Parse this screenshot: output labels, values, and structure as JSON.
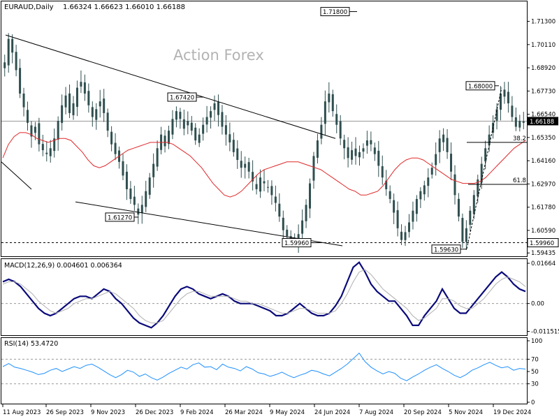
{
  "header": {
    "symbol": "EURAUD,Daily",
    "ohlc": "1.66324 1.66623 1.66010 1.66188"
  },
  "watermark": "Action Forex",
  "colors": {
    "candles": "#2f4f4f",
    "moving_average": "#e0282a",
    "macd_main": "#0a0a7a",
    "macd_signal": "#b0b0b0",
    "rsi_line": "#1e90ff",
    "trendlines": "#000000",
    "grid_dashed": "#999999"
  },
  "chart_data": [
    {
      "type": "candlestick",
      "panel": "price",
      "yticks": [
        "1.71300",
        "1.70110",
        "1.68920",
        "1.67730",
        "1.66540",
        "1.65350",
        "1.64160",
        "1.62970",
        "1.61780",
        "1.60590",
        "1.59435"
      ],
      "ylim": [
        1.593,
        1.7225
      ],
      "xticks": [
        "11 Aug 2023",
        "26 Sep 2023",
        "9 Nov 2023",
        "26 Dec 2023",
        "9 Feb 2024",
        "26 Mar 2024",
        "9 May 2024",
        "24 Jun 2024",
        "7 Aug 2024",
        "20 Sep 2024",
        "5 Nov 2024",
        "19 Dec 2024"
      ],
      "current_price": "1.66188",
      "support_level": "1.59960",
      "close_series": [
        1.692,
        1.704,
        1.697,
        1.688,
        1.676,
        1.669,
        1.661,
        1.654,
        1.659,
        1.65,
        1.647,
        1.645,
        1.648,
        1.653,
        1.662,
        1.67,
        1.675,
        1.666,
        1.671,
        1.679,
        1.682,
        1.676,
        1.67,
        1.664,
        1.668,
        1.672,
        1.666,
        1.657,
        1.65,
        1.645,
        1.641,
        1.634,
        1.627,
        1.622,
        1.619,
        1.614,
        1.619,
        1.626,
        1.633,
        1.64,
        1.648,
        1.655,
        1.649,
        1.657,
        1.663,
        1.667,
        1.663,
        1.658,
        1.662,
        1.657,
        1.652,
        1.655,
        1.66,
        1.664,
        1.667,
        1.671,
        1.665,
        1.659,
        1.655,
        1.651,
        1.646,
        1.642,
        1.638,
        1.64,
        1.636,
        1.631,
        1.627,
        1.633,
        1.63,
        1.628,
        1.624,
        1.62,
        1.613,
        1.606,
        1.603,
        1.601,
        1.6,
        1.604,
        1.611,
        1.619,
        1.63,
        1.644,
        1.652,
        1.66,
        1.672,
        1.676,
        1.667,
        1.66,
        1.653,
        1.648,
        1.643,
        1.647,
        1.644,
        1.646,
        1.648,
        1.652,
        1.65,
        1.645,
        1.639,
        1.633,
        1.627,
        1.622,
        1.615,
        1.607,
        1.601,
        1.605,
        1.61,
        1.616,
        1.622,
        1.626,
        1.629,
        1.633,
        1.638,
        1.645,
        1.653,
        1.655,
        1.646,
        1.636,
        1.624,
        1.613,
        1.6,
        1.607,
        1.616,
        1.624,
        1.632,
        1.64,
        1.648,
        1.655,
        1.661,
        1.668,
        1.676,
        1.678,
        1.671,
        1.664,
        1.659,
        1.662,
        1.661
      ],
      "moving_average_series": [
        1.643,
        1.65,
        1.654,
        1.656,
        1.656,
        1.655,
        1.653,
        1.652,
        1.651,
        1.652,
        1.653,
        1.653,
        1.652,
        1.649,
        1.646,
        1.642,
        1.639,
        1.638,
        1.639,
        1.641,
        1.643,
        1.645,
        1.647,
        1.648,
        1.649,
        1.65,
        1.651,
        1.651,
        1.651,
        1.651,
        1.65,
        1.648,
        1.646,
        1.644,
        1.641,
        1.638,
        1.634,
        1.63,
        1.627,
        1.624,
        1.623,
        1.624,
        1.626,
        1.629,
        1.632,
        1.635,
        1.637,
        1.638,
        1.639,
        1.64,
        1.641,
        1.641,
        1.641,
        1.64,
        1.639,
        1.638,
        1.637,
        1.635,
        1.633,
        1.631,
        1.629,
        1.627,
        1.626,
        1.624,
        1.624,
        1.625,
        1.626,
        1.629,
        1.633,
        1.637,
        1.64,
        1.642,
        1.643,
        1.643,
        1.642,
        1.64,
        1.638,
        1.636,
        1.634,
        1.632,
        1.631,
        1.63,
        1.63,
        1.63,
        1.631,
        1.633,
        1.636,
        1.639,
        1.642,
        1.645,
        1.648,
        1.65,
        1.652
      ],
      "annotations": [
        {
          "label": "1.71800",
          "value": 1.718
        },
        {
          "label": "1.68000",
          "value": 1.68
        },
        {
          "label": "1.67420",
          "value": 1.6742
        },
        {
          "label": "1.61270",
          "value": 1.6127
        },
        {
          "label": "1.59960",
          "value": 1.5996
        },
        {
          "label": "1.59630",
          "value": 1.5963
        }
      ],
      "fib_labels": [
        "38.2",
        "61.8"
      ]
    },
    {
      "type": "line",
      "panel": "macd",
      "title": "MACD(12,26,9) 0.004601 0.006364",
      "yticks": [
        "0.01664",
        "0.00",
        "-0.011515"
      ],
      "ylim": [
        -0.0125,
        0.0175
      ],
      "series": [
        {
          "name": "MACD",
          "values": [
            0.009,
            0.01,
            0.009,
            0.007,
            0.004,
            0.001,
            -0.002,
            -0.004,
            -0.005,
            -0.004,
            -0.002,
            0.0,
            0.002,
            0.003,
            0.003,
            0.002,
            0.004,
            0.006,
            0.005,
            0.002,
            0.0,
            -0.003,
            -0.006,
            -0.008,
            -0.009,
            -0.01,
            -0.008,
            -0.005,
            -0.001,
            0.003,
            0.006,
            0.007,
            0.006,
            0.004,
            0.003,
            0.002,
            0.003,
            0.004,
            0.003,
            0.001,
            0.0,
            0.0,
            0.0,
            -0.001,
            -0.002,
            -0.003,
            -0.005,
            -0.005,
            -0.004,
            -0.002,
            0.0,
            -0.002,
            -0.004,
            -0.005,
            -0.005,
            -0.004,
            -0.001,
            0.003,
            0.009,
            0.015,
            0.017,
            0.013,
            0.008,
            0.005,
            0.003,
            0.001,
            0.001,
            -0.002,
            -0.005,
            -0.009,
            -0.009,
            -0.005,
            -0.002,
            0.001,
            0.006,
            0.002,
            -0.002,
            -0.004,
            -0.004,
            -0.001,
            0.002,
            0.005,
            0.008,
            0.011,
            0.013,
            0.011,
            0.008,
            0.006,
            0.005
          ]
        },
        {
          "name": "Signal",
          "values": [
            0.008,
            0.009,
            0.009,
            0.008,
            0.006,
            0.004,
            0.001,
            -0.001,
            -0.003,
            -0.004,
            -0.003,
            -0.002,
            0.0,
            0.001,
            0.002,
            0.002,
            0.003,
            0.004,
            0.005,
            0.004,
            0.002,
            0.0,
            -0.002,
            -0.005,
            -0.007,
            -0.008,
            -0.008,
            -0.007,
            -0.004,
            -0.001,
            0.002,
            0.004,
            0.005,
            0.005,
            0.004,
            0.003,
            0.003,
            0.003,
            0.003,
            0.002,
            0.001,
            0.001,
            0.0,
            0.0,
            -0.001,
            -0.002,
            -0.003,
            -0.004,
            -0.004,
            -0.003,
            -0.002,
            -0.002,
            -0.003,
            -0.004,
            -0.004,
            -0.004,
            -0.003,
            0.0,
            0.004,
            0.009,
            0.013,
            0.014,
            0.012,
            0.009,
            0.006,
            0.004,
            0.002,
            0.0,
            -0.002,
            -0.005,
            -0.007,
            -0.006,
            -0.004,
            -0.002,
            0.002,
            0.002,
            0.001,
            -0.001,
            -0.002,
            -0.002,
            0.0,
            0.002,
            0.005,
            0.008,
            0.01,
            0.011,
            0.01,
            0.009,
            0.007
          ]
        }
      ]
    },
    {
      "type": "line",
      "panel": "rsi",
      "title": "RSI(14) 53.4720",
      "yticks": [
        "100",
        "70",
        "50",
        "30",
        "0"
      ],
      "ylim": [
        0,
        100
      ],
      "series": [
        {
          "name": "RSI",
          "values": [
            58,
            63,
            57,
            55,
            52,
            49,
            45,
            47,
            52,
            55,
            50,
            54,
            58,
            55,
            60,
            62,
            57,
            51,
            45,
            40,
            45,
            52,
            49,
            42,
            46,
            40,
            36,
            41,
            47,
            52,
            57,
            54,
            61,
            64,
            57,
            58,
            53,
            62,
            57,
            55,
            51,
            58,
            54,
            48,
            46,
            42,
            45,
            49,
            44,
            40,
            44,
            47,
            52,
            50,
            46,
            43,
            49,
            55,
            62,
            71,
            80,
            66,
            57,
            51,
            46,
            50,
            47,
            39,
            35,
            41,
            46,
            52,
            57,
            61,
            55,
            50,
            44,
            40,
            45,
            52,
            56,
            61,
            65,
            60,
            56,
            58,
            52,
            55,
            54
          ]
        }
      ]
    }
  ]
}
